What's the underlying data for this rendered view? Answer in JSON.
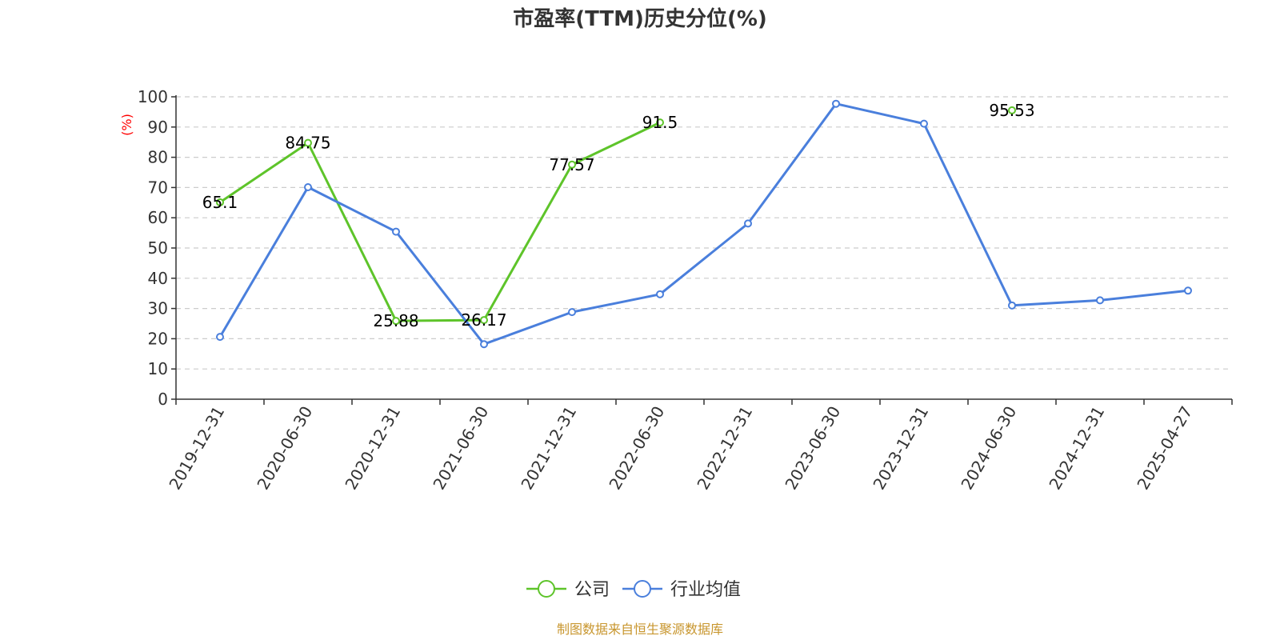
{
  "chart_data": {
    "type": "line",
    "title": "市盈率(TTM)历史分位(%)",
    "ylabel": "(%)",
    "ylim": [
      0,
      100
    ],
    "yticks": [
      0,
      10,
      20,
      30,
      40,
      50,
      60,
      70,
      80,
      90,
      100
    ],
    "grid": true,
    "legend_position": "bottom-center",
    "categories": [
      "2019-12-31",
      "2020-06-30",
      "2020-12-31",
      "2021-06-30",
      "2021-12-31",
      "2022-06-30",
      "2022-12-31",
      "2023-06-30",
      "2023-12-31",
      "2024-06-30",
      "2024-12-31",
      "2025-04-27"
    ],
    "series": [
      {
        "name": "公司",
        "color": "#5ec42a",
        "values": [
          65.1,
          84.75,
          25.88,
          26.17,
          77.57,
          91.5,
          null,
          null,
          null,
          95.53,
          null,
          null
        ],
        "labels": [
          "65.1",
          "84.75",
          "25.88",
          "26.17",
          "77.57",
          "91.5",
          null,
          null,
          null,
          "95.53",
          null,
          null
        ]
      },
      {
        "name": "行业均值",
        "color": "#4a7fdc",
        "values": [
          20.6,
          70.1,
          55.4,
          18.2,
          28.8,
          34.7,
          58.1,
          97.7,
          91.1,
          31.0,
          32.7,
          35.9
        ],
        "labels": null
      }
    ],
    "source": "制图数据来自恒生聚源数据库"
  }
}
